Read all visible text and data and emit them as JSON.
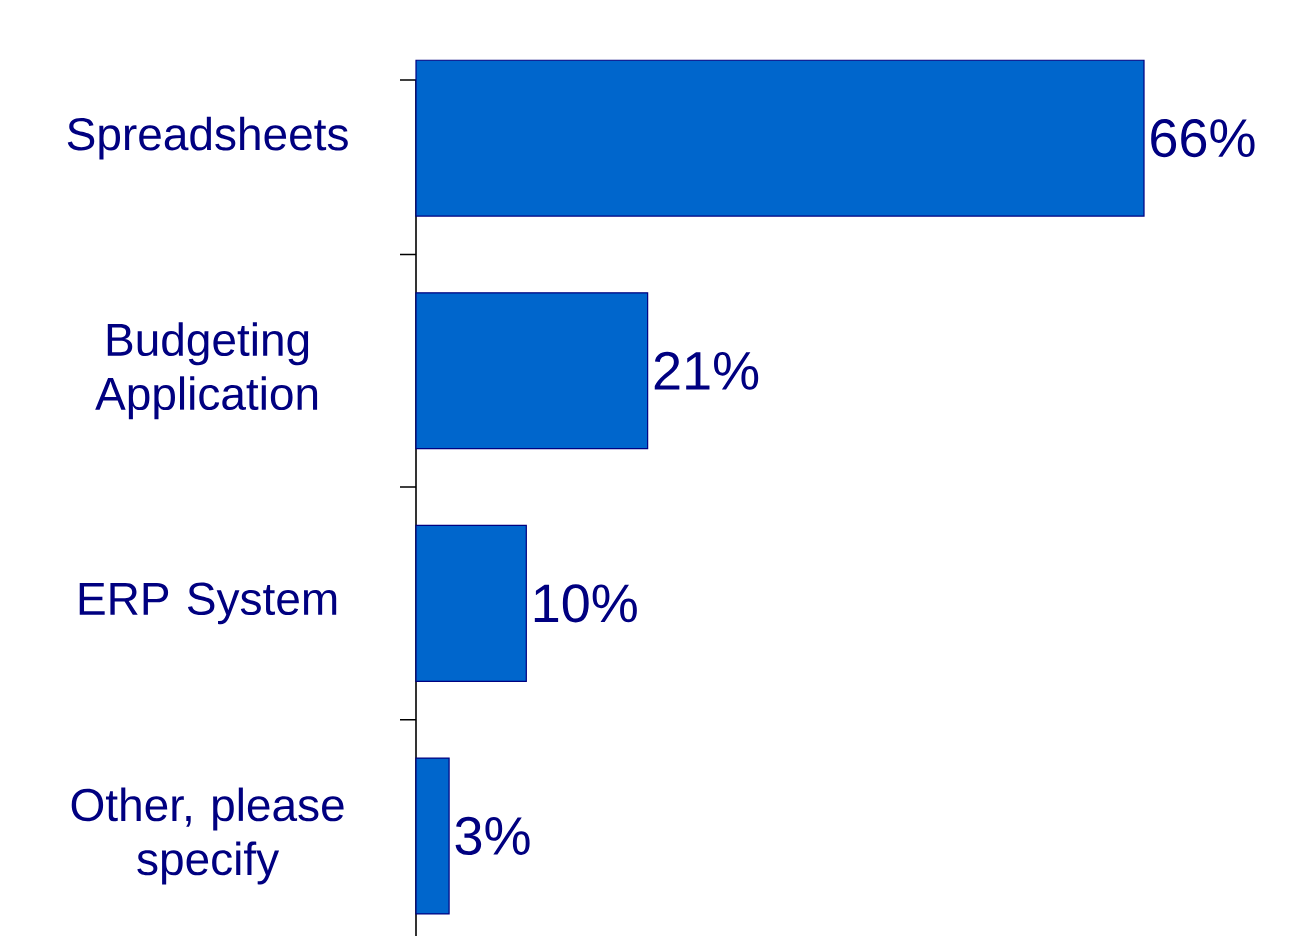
{
  "chart_data": {
    "type": "bar",
    "orientation": "horizontal",
    "tick_labels": "y",
    "categories": [
      "Spreadsheets",
      "Budgeting Application",
      "ERP System",
      "Other, please specify"
    ],
    "values": [
      66,
      21,
      10,
      3
    ],
    "value_labels": [
      "66%",
      "21%",
      "10%",
      "3%"
    ],
    "color": "#0066cc"
  }
}
